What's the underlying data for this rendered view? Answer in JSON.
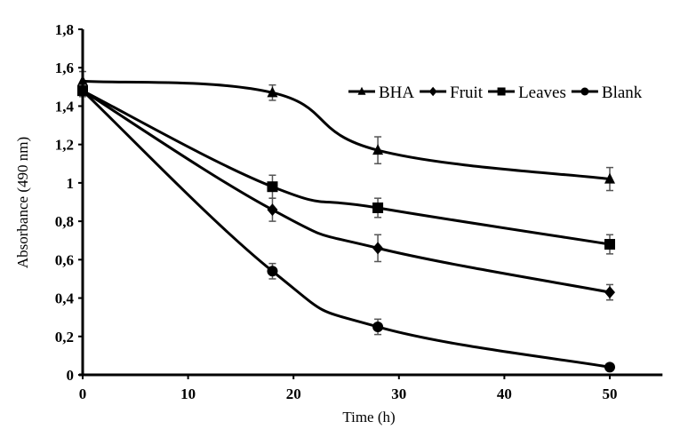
{
  "chart_data": {
    "type": "line",
    "title": "",
    "xlabel": "Time (h)",
    "ylabel": "Absorbance (490 nm)",
    "xlim": [
      0,
      55
    ],
    "ylim": [
      0,
      1.8
    ],
    "x_ticks": [
      "0",
      "10",
      "20",
      "30",
      "40",
      "50"
    ],
    "y_ticks": [
      "0",
      "0,2",
      "0,4",
      "0,6",
      "0,8",
      "1",
      "1,2",
      "1,4",
      "1,6",
      "1,8"
    ],
    "grid": false,
    "legend_position": "top-right",
    "x": [
      0,
      18,
      28,
      50
    ],
    "series": [
      {
        "name": "BHA",
        "marker": "triangle",
        "values": [
          1.53,
          1.47,
          1.17,
          1.02
        ],
        "errors": [
          0.05,
          0.04,
          0.07,
          0.06
        ]
      },
      {
        "name": "Fruit",
        "marker": "diamond",
        "values": [
          1.48,
          0.86,
          0.66,
          0.43
        ],
        "errors": [
          0.03,
          0.06,
          0.07,
          0.04
        ]
      },
      {
        "name": "Leaves",
        "marker": "square",
        "values": [
          1.48,
          0.98,
          0.87,
          0.68
        ],
        "errors": [
          0.03,
          0.06,
          0.05,
          0.05
        ]
      },
      {
        "name": "Blank",
        "marker": "circle",
        "values": [
          1.48,
          0.54,
          0.25,
          0.04
        ],
        "errors": [
          0.03,
          0.04,
          0.04,
          0.01
        ]
      }
    ]
  }
}
